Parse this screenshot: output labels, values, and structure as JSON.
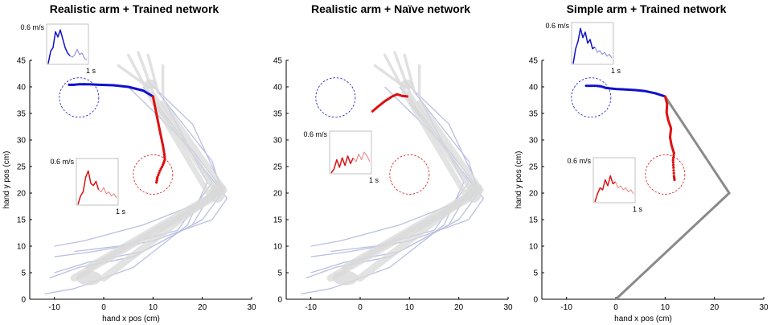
{
  "colors": {
    "blue": "#1010cc",
    "light_blue": "#8c8cdc",
    "red": "#dd1111",
    "light_red": "#ee8888",
    "arm_bone": "#d8d8d8",
    "arm_muscle": "#b7bde0",
    "simple_arm": "#8a8a8a"
  },
  "chart_data": [
    {
      "type": "line",
      "title": "Realistic arm + Trained network",
      "xlabel": "hand x pos (cm)",
      "ylabel": "hand y pos (cm)",
      "xlim": [
        -15,
        30
      ],
      "ylim": [
        0,
        45
      ],
      "xticks": [
        -10,
        0,
        10,
        20,
        30
      ],
      "yticks": [
        0,
        5,
        10,
        15,
        20,
        25,
        30,
        35,
        40,
        45
      ],
      "arm_model": "realistic-musculoskeletal",
      "targets": [
        {
          "cx": -5,
          "cy": 38,
          "r": 4,
          "color": "blue"
        },
        {
          "cx": 10,
          "cy": 23.5,
          "r": 4,
          "color": "red"
        }
      ],
      "series": [
        {
          "color": "blue",
          "points": [
            [
              10,
              38.2
            ],
            [
              8,
              39.3
            ],
            [
              5,
              40.0
            ],
            [
              2,
              40.3
            ],
            [
              -1,
              40.4
            ],
            [
              -3,
              40.5
            ],
            [
              -4,
              40.5
            ],
            [
              -5,
              40.5
            ],
            [
              -6,
              40.4
            ],
            [
              -7,
              40.4
            ]
          ]
        },
        {
          "color": "red",
          "points": [
            [
              10,
              38.2
            ],
            [
              10.5,
              35.8
            ],
            [
              11.0,
              33.5
            ],
            [
              11.5,
              31.2
            ],
            [
              12.0,
              29.0
            ],
            [
              12.3,
              27.3
            ],
            [
              12.4,
              26.3
            ],
            [
              12.0,
              25.3
            ],
            [
              11.4,
              24.2
            ],
            [
              10.9,
              23.0
            ],
            [
              10.7,
              22.0
            ]
          ]
        }
      ],
      "insets": [
        {
          "label": "0.6 m/s",
          "time_label": "1 s",
          "color": "blue",
          "trace": [
            0,
            0.35,
            0.45,
            0.9,
            0.75,
            0.95,
            0.7,
            0.45,
            0.3,
            0.22,
            0.18,
            0.25,
            0.4,
            0.25,
            0.3,
            0.15,
            0.1
          ]
        },
        {
          "label": "0.6 m/s",
          "time_label": "1 s",
          "color": "red",
          "trace": [
            0,
            0.2,
            0.3,
            0.65,
            0.8,
            0.5,
            0.45,
            0.55,
            0.35,
            0.3,
            0.4,
            0.25,
            0.3,
            0.2,
            0.25,
            0.15
          ]
        }
      ]
    },
    {
      "type": "line",
      "title": "Realistic arm + Naïve network",
      "xlabel": "",
      "ylabel": "",
      "xlim": [
        -15,
        30
      ],
      "ylim": [
        0,
        45
      ],
      "xticks": [
        -10,
        0,
        10,
        20,
        30
      ],
      "yticks": [
        0,
        5,
        10,
        15,
        20,
        25,
        30,
        35,
        40,
        45
      ],
      "arm_model": "realistic-musculoskeletal",
      "targets": [
        {
          "cx": -5,
          "cy": 38,
          "r": 4,
          "color": "blue"
        },
        {
          "cx": 10,
          "cy": 23.5,
          "r": 4,
          "color": "red"
        }
      ],
      "series": [
        {
          "color": "red",
          "points": [
            [
              2.5,
              35.4
            ],
            [
              3.5,
              36.2
            ],
            [
              5,
              37.3
            ],
            [
              6.5,
              38.2
            ],
            [
              7.5,
              38.6
            ],
            [
              8.5,
              38.3
            ],
            [
              9.5,
              38.2
            ]
          ]
        }
      ],
      "insets": [
        {
          "label": "0.6 m/s",
          "time_label": "1 s",
          "color": "red",
          "trace": [
            0,
            0.1,
            0.35,
            0.15,
            0.4,
            0.2,
            0.45,
            0.25,
            0.4,
            0.3,
            0.5,
            0.35,
            0.55,
            0.45,
            0.3
          ]
        }
      ]
    },
    {
      "type": "line",
      "title": "Simple arm + Trained network",
      "xlabel": "hand x pos (cm)",
      "ylabel": "hand y pos (cm)",
      "xlim": [
        -15,
        30
      ],
      "ylim": [
        0,
        45
      ],
      "xticks": [
        -10,
        0,
        10,
        20,
        30
      ],
      "yticks": [
        0,
        5,
        10,
        15,
        20,
        25,
        30,
        35,
        40,
        45
      ],
      "arm_model": "two-link",
      "arm_links": [
        [
          0,
          0
        ],
        [
          23,
          20
        ],
        [
          10,
          38.2
        ]
      ],
      "targets": [
        {
          "cx": -5,
          "cy": 38,
          "r": 4,
          "color": "blue"
        },
        {
          "cx": 10,
          "cy": 23.5,
          "r": 4,
          "color": "red"
        }
      ],
      "series": [
        {
          "color": "blue",
          "points": [
            [
              10,
              38.2
            ],
            [
              8,
              38.8
            ],
            [
              6,
              39.2
            ],
            [
              4,
              39.4
            ],
            [
              2,
              39.5
            ],
            [
              0,
              39.6
            ],
            [
              -1,
              39.7
            ],
            [
              -2,
              39.8
            ],
            [
              -3,
              40.1
            ],
            [
              -4,
              40.2
            ],
            [
              -5,
              40.2
            ],
            [
              -6,
              40.2
            ]
          ]
        },
        {
          "color": "red",
          "points": [
            [
              10,
              38.2
            ],
            [
              10.4,
              36.8
            ],
            [
              10.3,
              35.2
            ],
            [
              10.6,
              33.8
            ],
            [
              11.2,
              32.2
            ],
            [
              11.0,
              30.5
            ],
            [
              11.3,
              29.0
            ],
            [
              11.8,
              27.5
            ],
            [
              11.6,
              26.2
            ],
            [
              11.7,
              24.8
            ],
            [
              11.8,
              23.2
            ],
            [
              11.9,
              22.5
            ]
          ]
        }
      ],
      "insets": [
        {
          "label": "0.6 m/s",
          "time_label": "1 s",
          "color": "blue",
          "trace": [
            0,
            0.4,
            0.6,
            0.95,
            0.7,
            0.85,
            0.55,
            0.65,
            0.4,
            0.45,
            0.3,
            0.35,
            0.25,
            0.3,
            0.2,
            0.25,
            0.15
          ]
        },
        {
          "label": "0.6 m/s",
          "time_label": "1 s",
          "color": "red",
          "trace": [
            0,
            0.2,
            0.35,
            0.3,
            0.55,
            0.4,
            0.65,
            0.45,
            0.5,
            0.35,
            0.4,
            0.3,
            0.35,
            0.25,
            0.3,
            0.2
          ]
        }
      ]
    }
  ]
}
